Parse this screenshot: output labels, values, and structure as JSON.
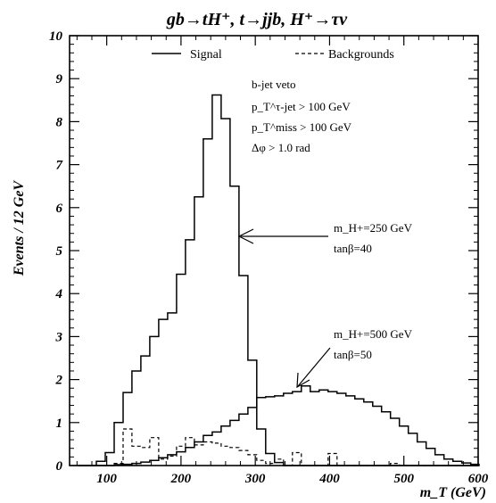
{
  "chart_data": {
    "type": "line",
    "title": "gb→tH⁺, t→jjb, H⁺→τν",
    "xlabel": "m_T (GeV)",
    "ylabel": "Events / 12 GeV",
    "xlim": [
      50,
      600
    ],
    "ylim": [
      0,
      10
    ],
    "x_ticks": [
      100,
      200,
      300,
      400,
      500,
      600
    ],
    "y_ticks": [
      0,
      1,
      2,
      3,
      4,
      5,
      6,
      7,
      8,
      9,
      10
    ],
    "grid": false,
    "legend": {
      "placement": "top",
      "entries": [
        {
          "label": "Signal",
          "style": "solid"
        },
        {
          "label": "Backgrounds",
          "style": "dashed"
        }
      ]
    },
    "cuts": [
      "b-jet veto",
      "p_T^τ-jet > 100 GeV",
      "p_T^miss > 100 GeV",
      "Δφ > 1.0 rad"
    ],
    "annotations": [
      {
        "mass_label": "m_H+=250 GeV",
        "tanb_label": "tanβ=40",
        "series": "m_H+=250 GeV"
      },
      {
        "mass_label": "m_H+=500 GeV",
        "tanb_label": "tanβ=50",
        "series": "m_H+=500 GeV"
      }
    ],
    "bin_width": 12,
    "bin_start": 62,
    "series": [
      {
        "name": "m_H+=250 GeV",
        "style": "solid",
        "values": [
          0,
          0,
          0.1,
          0.3,
          1.0,
          1.7,
          2.2,
          2.55,
          3.0,
          3.4,
          3.55,
          4.45,
          5.25,
          6.25,
          7.6,
          8.62,
          8.07,
          6.5,
          4.42,
          2.45,
          0.85,
          0.28,
          0.07,
          0,
          0,
          0,
          0,
          0,
          0,
          0,
          0,
          0,
          0,
          0,
          0,
          0,
          0,
          0,
          0,
          0,
          0,
          0,
          0,
          0,
          0
        ]
      },
      {
        "name": "m_H+=500 GeV",
        "style": "solid",
        "values": [
          0,
          0,
          0,
          0,
          0.02,
          0.03,
          0.05,
          0.08,
          0.12,
          0.18,
          0.25,
          0.32,
          0.42,
          0.55,
          0.7,
          0.78,
          0.92,
          1.05,
          1.2,
          1.35,
          1.58,
          1.6,
          1.62,
          1.68,
          1.72,
          1.85,
          1.72,
          1.76,
          1.72,
          1.68,
          1.62,
          1.55,
          1.48,
          1.38,
          1.25,
          1.1,
          0.92,
          0.75,
          0.55,
          0.4,
          0.25,
          0.15,
          0.1,
          0.06,
          0.03
        ]
      },
      {
        "name": "Backgrounds",
        "style": "dashed",
        "values": [
          0,
          0,
          0,
          0,
          0.05,
          0.85,
          0.45,
          0.42,
          0.65,
          0.15,
          0.22,
          0.45,
          0.65,
          0.48,
          0.55,
          0.52,
          0.45,
          0.42,
          0.35,
          0.25,
          0.12,
          0.05,
          0.15,
          0,
          0.3,
          0,
          0,
          0,
          0.28,
          0,
          0,
          0,
          0,
          0,
          0,
          0.05,
          0,
          0,
          0,
          0,
          0,
          0,
          0,
          0,
          0
        ]
      }
    ]
  }
}
